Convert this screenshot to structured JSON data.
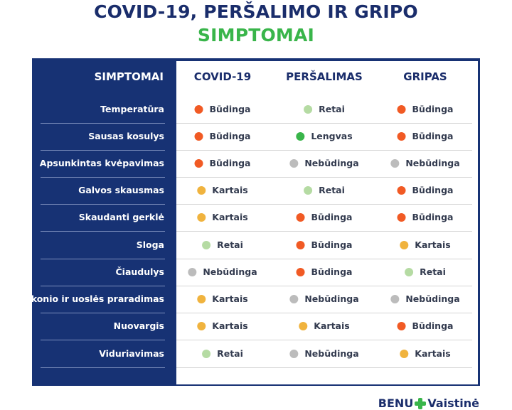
{
  "title": {
    "line1": "COVID-19, PERŠALIMO IR GRIPO",
    "line2": "SIMPTOMAI"
  },
  "table": {
    "headers": {
      "symptoms": "SIMPTOMAI",
      "columns": [
        "COVID-19",
        "PERŠALIMAS",
        "GRIPAS"
      ]
    },
    "level_colors": {
      "Būdinga": "#f15a24",
      "Retai": "#b5dba3",
      "Lengvas": "#39b54a",
      "Nebūdinga": "#bcbcbc",
      "Kartais": "#f0b33e"
    },
    "rows": [
      {
        "symptom": "Temperatūra",
        "values": [
          "Būdinga",
          "Retai",
          "Būdinga"
        ]
      },
      {
        "symptom": "Sausas kosulys",
        "values": [
          "Būdinga",
          "Lengvas",
          "Būdinga"
        ]
      },
      {
        "symptom": "Apsunkintas kvėpavimas",
        "values": [
          "Būdinga",
          "Nebūdinga",
          "Nebūdinga"
        ]
      },
      {
        "symptom": "Galvos skausmas",
        "values": [
          "Kartais",
          "Retai",
          "Būdinga"
        ]
      },
      {
        "symptom": "Skaudanti gerklė",
        "values": [
          "Kartais",
          "Būdinga",
          "Būdinga"
        ]
      },
      {
        "symptom": "Sloga",
        "values": [
          "Retai",
          "Būdinga",
          "Kartais"
        ]
      },
      {
        "symptom": "Čiaudulys",
        "values": [
          "Nebūdinga",
          "Būdinga",
          "Retai"
        ]
      },
      {
        "symptom": "Skonio ir uoslės praradimas",
        "values": [
          "Kartais",
          "Nebūdinga",
          "Nebūdinga"
        ]
      },
      {
        "symptom": "Nuovargis",
        "values": [
          "Kartais",
          "Kartais",
          "Būdinga"
        ]
      },
      {
        "symptom": "Viduriavimas",
        "values": [
          "Retai",
          "Nebūdinga",
          "Kartais"
        ]
      }
    ]
  },
  "brand": {
    "left": "BENU",
    "right": "Vaistinė"
  }
}
